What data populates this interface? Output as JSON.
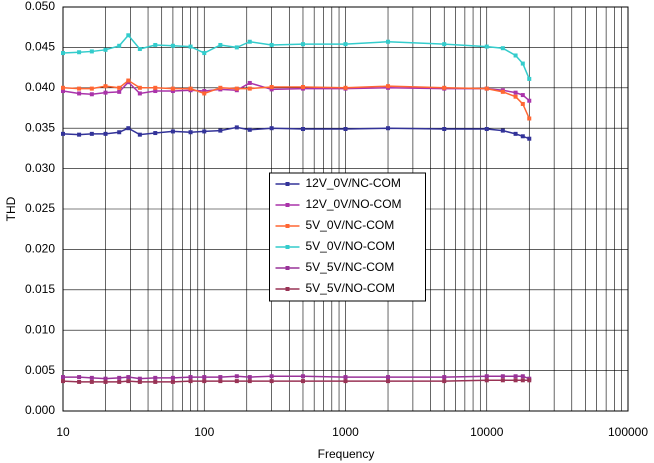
{
  "chart_data": {
    "type": "line",
    "xlabel": "Frequency",
    "ylabel": "THD",
    "xscale": "log",
    "grid": true,
    "legend": "center",
    "x": [
      10,
      13,
      16,
      20,
      25,
      29,
      35,
      45,
      60,
      80,
      100,
      130,
      170,
      210,
      300,
      500,
      1000,
      2000,
      5000,
      10000,
      13000,
      16000,
      18000,
      20000
    ],
    "series": [
      {
        "name": "12V_0V/NC-COM",
        "color": "#333399",
        "values": [
          0.0343,
          0.0342,
          0.0343,
          0.0343,
          0.0345,
          0.035,
          0.0342,
          0.0344,
          0.0346,
          0.0345,
          0.0346,
          0.0347,
          0.0351,
          0.0348,
          0.035,
          0.0349,
          0.0349,
          0.035,
          0.0349,
          0.0349,
          0.0347,
          0.0343,
          0.034,
          0.0337
        ]
      },
      {
        "name": "12V_0V/NO-COM",
        "color": "#aa33aa",
        "values": [
          0.0396,
          0.0393,
          0.0392,
          0.0394,
          0.0395,
          0.0407,
          0.0393,
          0.0396,
          0.0396,
          0.0397,
          0.0396,
          0.0398,
          0.0397,
          0.0406,
          0.0398,
          0.0399,
          0.0399,
          0.04,
          0.0399,
          0.0399,
          0.0397,
          0.0394,
          0.0391,
          0.0384
        ]
      },
      {
        "name": "5V_0V/NC-COM",
        "color": "#ff6633",
        "values": [
          0.04,
          0.0399,
          0.0399,
          0.0402,
          0.04,
          0.0409,
          0.04,
          0.04,
          0.0399,
          0.0399,
          0.0393,
          0.04,
          0.0399,
          0.0399,
          0.0401,
          0.0401,
          0.04,
          0.0402,
          0.04,
          0.0399,
          0.0395,
          0.0389,
          0.038,
          0.0362
        ]
      },
      {
        "name": "5V_0V/NO-COM",
        "color": "#33cccc",
        "values": [
          0.0443,
          0.0444,
          0.0445,
          0.0447,
          0.0452,
          0.0465,
          0.0448,
          0.0453,
          0.0452,
          0.0451,
          0.0443,
          0.0453,
          0.045,
          0.0457,
          0.0453,
          0.0454,
          0.0454,
          0.0457,
          0.0454,
          0.0451,
          0.0449,
          0.044,
          0.043,
          0.0411
        ]
      },
      {
        "name": "5V_5V/NC-COM",
        "color": "#993399",
        "values": [
          0.0042,
          0.0042,
          0.0041,
          0.004,
          0.0041,
          0.0042,
          0.004,
          0.0041,
          0.0041,
          0.0042,
          0.0042,
          0.0042,
          0.0043,
          0.0042,
          0.0043,
          0.0043,
          0.0042,
          0.0042,
          0.0042,
          0.0043,
          0.0043,
          0.0043,
          0.0043,
          0.004
        ]
      },
      {
        "name": "5V_5V/NO-COM",
        "color": "#993355",
        "values": [
          0.0037,
          0.0036,
          0.0036,
          0.0036,
          0.0036,
          0.0037,
          0.0036,
          0.0036,
          0.0036,
          0.0037,
          0.0037,
          0.0037,
          0.0037,
          0.0037,
          0.0037,
          0.0037,
          0.0037,
          0.0037,
          0.0037,
          0.0038,
          0.0038,
          0.0038,
          0.0038,
          0.0038
        ]
      }
    ],
    "xlim": [
      10,
      100000
    ],
    "xticks": [
      10,
      100,
      1000,
      10000,
      100000
    ],
    "ylim": [
      0,
      0.05
    ],
    "yticks": [
      {
        "value": 0,
        "label": "0.000"
      },
      {
        "value": 0.005,
        "label": "0.005"
      },
      {
        "value": 0.01,
        "label": "0.010"
      },
      {
        "value": 0.015,
        "label": "0.015"
      },
      {
        "value": 0.02,
        "label": "0.020"
      },
      {
        "value": 0.025,
        "label": "0.025"
      },
      {
        "value": 0.03,
        "label": "0.030"
      },
      {
        "value": 0.035,
        "label": "0.035"
      },
      {
        "value": 0.04,
        "label": "0.040"
      },
      {
        "value": 0.045,
        "label": "0.045"
      },
      {
        "value": 0.05,
        "label": "0.050"
      }
    ]
  }
}
